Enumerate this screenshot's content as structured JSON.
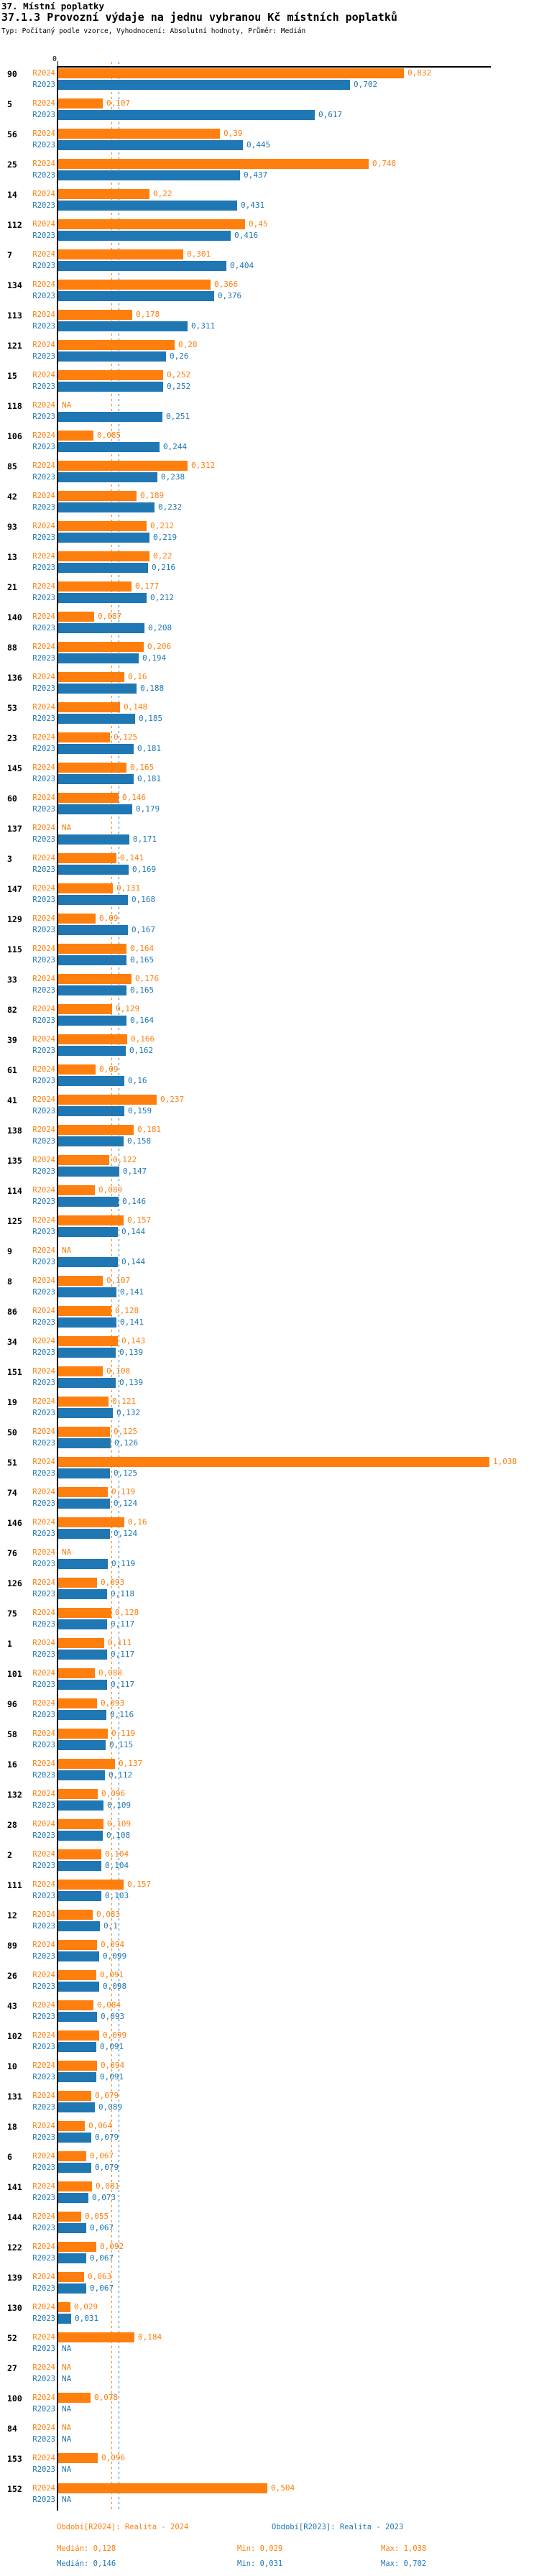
{
  "header": {
    "title": "37. Místní poplatky",
    "subtitle": "37.1.3 Provozní výdaje na jednu vybranou Kč místních poplatků",
    "meta": "Typ: Počítaný podle vzorce, Vyhodnocení: Absolutní hodnoty, Průměr: Medián"
  },
  "chart_data": {
    "type": "bar",
    "orientation": "horizontal",
    "title": "37.1.3 Provozní výdaje na jednu vybranou Kč místních poplatků",
    "x_axis": {
      "zero_label": "0",
      "xlim": [
        0,
        1.1
      ],
      "gridlines": false
    },
    "series": [
      {
        "name": "R2024",
        "color": "#ff7f0e",
        "median": 0.128,
        "min": 0.029,
        "max": 1.038
      },
      {
        "name": "R2023",
        "color": "#1f77b4",
        "median": 0.146,
        "min": 0.031,
        "max": 0.702
      }
    ],
    "na_text": "NA",
    "rows": [
      {
        "id": "90",
        "r2024": 0.832,
        "r2024_label": "0,832",
        "r2023": 0.702,
        "r2023_label": "0,702"
      },
      {
        "id": "5",
        "r2024": 0.107,
        "r2024_label": "0,107",
        "r2023": 0.617,
        "r2023_label": "0,617"
      },
      {
        "id": "56",
        "r2024": 0.39,
        "r2024_label": "0,39",
        "r2023": 0.445,
        "r2023_label": "0,445"
      },
      {
        "id": "25",
        "r2024": 0.748,
        "r2024_label": "0,748",
        "r2023": 0.437,
        "r2023_label": "0,437"
      },
      {
        "id": "14",
        "r2024": 0.22,
        "r2024_label": "0,22",
        "r2023": 0.431,
        "r2023_label": "0,431"
      },
      {
        "id": "112",
        "r2024": 0.45,
        "r2024_label": "0,45",
        "r2023": 0.416,
        "r2023_label": "0,416"
      },
      {
        "id": "7",
        "r2024": 0.301,
        "r2024_label": "0,301",
        "r2023": 0.404,
        "r2023_label": "0,404"
      },
      {
        "id": "134",
        "r2024": 0.366,
        "r2024_label": "0,366",
        "r2023": 0.376,
        "r2023_label": "0,376"
      },
      {
        "id": "113",
        "r2024": 0.178,
        "r2024_label": "0,178",
        "r2023": 0.311,
        "r2023_label": "0,311"
      },
      {
        "id": "121",
        "r2024": 0.28,
        "r2024_label": "0,28",
        "r2023": 0.26,
        "r2023_label": "0,26"
      },
      {
        "id": "15",
        "r2024": 0.252,
        "r2024_label": "0,252",
        "r2023": 0.252,
        "r2023_label": "0,252"
      },
      {
        "id": "118",
        "r2024": null,
        "r2024_label": "NA",
        "r2023": 0.251,
        "r2023_label": "0,251"
      },
      {
        "id": "106",
        "r2024": 0.085,
        "r2024_label": "0,085",
        "r2023": 0.244,
        "r2023_label": "0,244"
      },
      {
        "id": "85",
        "r2024": 0.312,
        "r2024_label": "0,312",
        "r2023": 0.238,
        "r2023_label": "0,238"
      },
      {
        "id": "42",
        "r2024": 0.189,
        "r2024_label": "0,189",
        "r2023": 0.232,
        "r2023_label": "0,232"
      },
      {
        "id": "93",
        "r2024": 0.212,
        "r2024_label": "0,212",
        "r2023": 0.219,
        "r2023_label": "0,219"
      },
      {
        "id": "13",
        "r2024": 0.22,
        "r2024_label": "0,22",
        "r2023": 0.216,
        "r2023_label": "0,216"
      },
      {
        "id": "21",
        "r2024": 0.177,
        "r2024_label": "0,177",
        "r2023": 0.212,
        "r2023_label": "0,212"
      },
      {
        "id": "140",
        "r2024": 0.087,
        "r2024_label": "0,087",
        "r2023": 0.208,
        "r2023_label": "0,208"
      },
      {
        "id": "88",
        "r2024": 0.206,
        "r2024_label": "0,206",
        "r2023": 0.194,
        "r2023_label": "0,194"
      },
      {
        "id": "136",
        "r2024": 0.16,
        "r2024_label": "0,16",
        "r2023": 0.188,
        "r2023_label": "0,188"
      },
      {
        "id": "53",
        "r2024": 0.148,
        "r2024_label": "0,148",
        "r2023": 0.185,
        "r2023_label": "0,185"
      },
      {
        "id": "23",
        "r2024": 0.125,
        "r2024_label": "0,125",
        "r2023": 0.181,
        "r2023_label": "0,181"
      },
      {
        "id": "145",
        "r2024": 0.165,
        "r2024_label": "0,165",
        "r2023": 0.181,
        "r2023_label": "0,181"
      },
      {
        "id": "60",
        "r2024": 0.146,
        "r2024_label": "0,146",
        "r2023": 0.179,
        "r2023_label": "0,179"
      },
      {
        "id": "137",
        "r2024": null,
        "r2024_label": "NA",
        "r2023": 0.171,
        "r2023_label": "0,171"
      },
      {
        "id": "3",
        "r2024": 0.141,
        "r2024_label": "0,141",
        "r2023": 0.169,
        "r2023_label": "0,169"
      },
      {
        "id": "147",
        "r2024": 0.131,
        "r2024_label": "0,131",
        "r2023": 0.168,
        "r2023_label": "0,168"
      },
      {
        "id": "129",
        "r2024": 0.09,
        "r2024_label": "0,09",
        "r2023": 0.167,
        "r2023_label": "0,167"
      },
      {
        "id": "115",
        "r2024": 0.164,
        "r2024_label": "0,164",
        "r2023": 0.165,
        "r2023_label": "0,165"
      },
      {
        "id": "33",
        "r2024": 0.176,
        "r2024_label": "0,176",
        "r2023": 0.165,
        "r2023_label": "0,165"
      },
      {
        "id": "82",
        "r2024": 0.129,
        "r2024_label": "0,129",
        "r2023": 0.164,
        "r2023_label": "0,164"
      },
      {
        "id": "39",
        "r2024": 0.166,
        "r2024_label": "0,166",
        "r2023": 0.162,
        "r2023_label": "0,162"
      },
      {
        "id": "61",
        "r2024": 0.09,
        "r2024_label": "0,09",
        "r2023": 0.16,
        "r2023_label": "0,16"
      },
      {
        "id": "41",
        "r2024": 0.237,
        "r2024_label": "0,237",
        "r2023": 0.159,
        "r2023_label": "0,159"
      },
      {
        "id": "138",
        "r2024": 0.181,
        "r2024_label": "0,181",
        "r2023": 0.158,
        "r2023_label": "0,158"
      },
      {
        "id": "135",
        "r2024": 0.122,
        "r2024_label": "0,122",
        "r2023": 0.147,
        "r2023_label": "0,147"
      },
      {
        "id": "114",
        "r2024": 0.089,
        "r2024_label": "0,089",
        "r2023": 0.146,
        "r2023_label": "0,146"
      },
      {
        "id": "125",
        "r2024": 0.157,
        "r2024_label": "0,157",
        "r2023": 0.144,
        "r2023_label": "0,144"
      },
      {
        "id": "9",
        "r2024": null,
        "r2024_label": "NA",
        "r2023": 0.144,
        "r2023_label": "0,144"
      },
      {
        "id": "8",
        "r2024": 0.107,
        "r2024_label": "0,107",
        "r2023": 0.141,
        "r2023_label": "0,141"
      },
      {
        "id": "86",
        "r2024": 0.128,
        "r2024_label": "0,128",
        "r2023": 0.141,
        "r2023_label": "0,141"
      },
      {
        "id": "34",
        "r2024": 0.143,
        "r2024_label": "0,143",
        "r2023": 0.139,
        "r2023_label": "0,139"
      },
      {
        "id": "151",
        "r2024": 0.108,
        "r2024_label": "0,108",
        "r2023": 0.139,
        "r2023_label": "0,139"
      },
      {
        "id": "19",
        "r2024": 0.121,
        "r2024_label": "0,121",
        "r2023": 0.132,
        "r2023_label": "0,132"
      },
      {
        "id": "50",
        "r2024": 0.125,
        "r2024_label": "0,125",
        "r2023": 0.126,
        "r2023_label": "0,126"
      },
      {
        "id": "51",
        "r2024": 1.038,
        "r2024_label": "1,038",
        "r2023": 0.125,
        "r2023_label": "0,125"
      },
      {
        "id": "74",
        "r2024": 0.119,
        "r2024_label": "0,119",
        "r2023": 0.124,
        "r2023_label": "0,124"
      },
      {
        "id": "146",
        "r2024": 0.16,
        "r2024_label": "0,16",
        "r2023": 0.124,
        "r2023_label": "0,124"
      },
      {
        "id": "76",
        "r2024": null,
        "r2024_label": "NA",
        "r2023": 0.119,
        "r2023_label": "0,119"
      },
      {
        "id": "126",
        "r2024": 0.093,
        "r2024_label": "0,093",
        "r2023": 0.118,
        "r2023_label": "0,118"
      },
      {
        "id": "75",
        "r2024": 0.128,
        "r2024_label": "0,128",
        "r2023": 0.117,
        "r2023_label": "0,117"
      },
      {
        "id": "1",
        "r2024": 0.111,
        "r2024_label": "0,111",
        "r2023": 0.117,
        "r2023_label": "0,117"
      },
      {
        "id": "101",
        "r2024": 0.088,
        "r2024_label": "0,088",
        "r2023": 0.117,
        "r2023_label": "0,117"
      },
      {
        "id": "96",
        "r2024": 0.093,
        "r2024_label": "0,093",
        "r2023": 0.116,
        "r2023_label": "0,116"
      },
      {
        "id": "58",
        "r2024": 0.119,
        "r2024_label": "0,119",
        "r2023": 0.115,
        "r2023_label": "0,115"
      },
      {
        "id": "16",
        "r2024": 0.137,
        "r2024_label": "0,137",
        "r2023": 0.112,
        "r2023_label": "0,112"
      },
      {
        "id": "132",
        "r2024": 0.096,
        "r2024_label": "0,096",
        "r2023": 0.109,
        "r2023_label": "0,109"
      },
      {
        "id": "28",
        "r2024": 0.109,
        "r2024_label": "0,109",
        "r2023": 0.108,
        "r2023_label": "0,108"
      },
      {
        "id": "2",
        "r2024": 0.104,
        "r2024_label": "0,104",
        "r2023": 0.104,
        "r2023_label": "0,104"
      },
      {
        "id": "111",
        "r2024": 0.157,
        "r2024_label": "0,157",
        "r2023": 0.103,
        "r2023_label": "0,103"
      },
      {
        "id": "12",
        "r2024": 0.083,
        "r2024_label": "0,083",
        "r2023": 0.1,
        "r2023_label": "0,1"
      },
      {
        "id": "89",
        "r2024": 0.094,
        "r2024_label": "0,094",
        "r2023": 0.099,
        "r2023_label": "0,099"
      },
      {
        "id": "26",
        "r2024": 0.091,
        "r2024_label": "0,091",
        "r2023": 0.098,
        "r2023_label": "0,098"
      },
      {
        "id": "43",
        "r2024": 0.084,
        "r2024_label": "0,084",
        "r2023": 0.093,
        "r2023_label": "0,093"
      },
      {
        "id": "102",
        "r2024": 0.099,
        "r2024_label": "0,099",
        "r2023": 0.091,
        "r2023_label": "0,091"
      },
      {
        "id": "10",
        "r2024": 0.094,
        "r2024_label": "0,094",
        "r2023": 0.091,
        "r2023_label": "0,091"
      },
      {
        "id": "131",
        "r2024": 0.079,
        "r2024_label": "0,079",
        "r2023": 0.089,
        "r2023_label": "0,089"
      },
      {
        "id": "18",
        "r2024": 0.064,
        "r2024_label": "0,064",
        "r2023": 0.079,
        "r2023_label": "0,079"
      },
      {
        "id": "6",
        "r2024": 0.067,
        "r2024_label": "0,067",
        "r2023": 0.079,
        "r2023_label": "0,079"
      },
      {
        "id": "141",
        "r2024": 0.081,
        "r2024_label": "0,081",
        "r2023": 0.073,
        "r2023_label": "0,073"
      },
      {
        "id": "144",
        "r2024": 0.055,
        "r2024_label": "0,055",
        "r2023": 0.067,
        "r2023_label": "0,067"
      },
      {
        "id": "122",
        "r2024": 0.092,
        "r2024_label": "0,092",
        "r2023": 0.067,
        "r2023_label": "0,067"
      },
      {
        "id": "139",
        "r2024": 0.063,
        "r2024_label": "0,063",
        "r2023": 0.067,
        "r2023_label": "0,067"
      },
      {
        "id": "130",
        "r2024": 0.029,
        "r2024_label": "0,029",
        "r2023": 0.031,
        "r2023_label": "0,031"
      },
      {
        "id": "52",
        "r2024": 0.184,
        "r2024_label": "0,184",
        "r2023": null,
        "r2023_label": "NA"
      },
      {
        "id": "27",
        "r2024": null,
        "r2024_label": "NA",
        "r2023": null,
        "r2023_label": "NA"
      },
      {
        "id": "100",
        "r2024": 0.078,
        "r2024_label": "0,078",
        "r2023": null,
        "r2023_label": "NA"
      },
      {
        "id": "84",
        "r2024": null,
        "r2024_label": "NA",
        "r2023": null,
        "r2023_label": "NA"
      },
      {
        "id": "153",
        "r2024": 0.096,
        "r2024_label": "0,096",
        "r2023": null,
        "r2023_label": "NA"
      },
      {
        "id": "152",
        "r2024": 0.504,
        "r2024_label": "0,504",
        "r2023": null,
        "r2023_label": "NA"
      }
    ]
  },
  "footer": {
    "r2024": {
      "period": "Období[R2024]: Realita - 2024",
      "median": "Medián: 0,128",
      "min": "Min: 0,029",
      "max": "Max: 1,038"
    },
    "r2023": {
      "period": "Období[R2023]: Realita - 2023",
      "median": "Medián: 0,146",
      "min": "Min: 0,031",
      "max": "Max: 0,702"
    }
  }
}
